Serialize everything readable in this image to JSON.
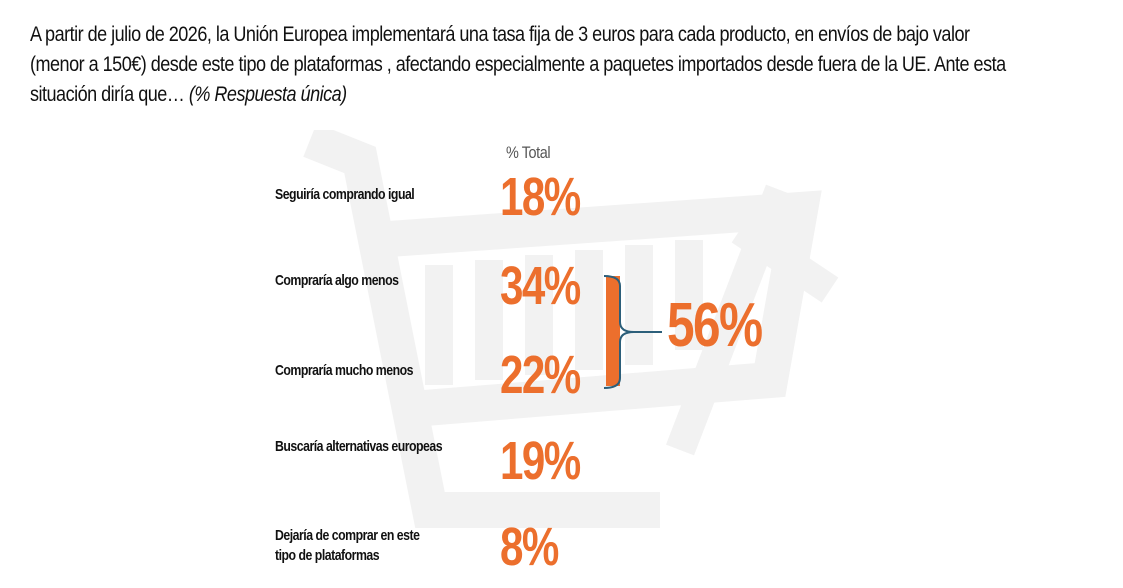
{
  "question": {
    "text": "A partir de julio de 2026, la Unión Europea implementará una tasa fija de 3 euros para cada producto, en envíos de bajo valor (menor a 150€) desde este tipo de plataformas , afectando especialmente a paquetes importados desde fuera de la UE. Ante esta situación diría que…",
    "note": "(% Respuesta única)"
  },
  "colors": {
    "accent": "#ec6f2d",
    "bracket_stroke": "#2c5f7a",
    "watermark": "#f2f2f2"
  },
  "icons": {
    "watermark": "shopping-cart-icon"
  },
  "chart_data": {
    "type": "table",
    "column_header": "% Total",
    "categories": [
      "Seguiría comprando igual",
      "Compraría algo menos",
      "Compraría mucho menos",
      "Buscaría alternativas europeas",
      "Dejaría de comprar en este tipo de plataformas"
    ],
    "values": [
      18,
      34,
      22,
      19,
      8
    ],
    "value_labels": [
      "18%",
      "34%",
      "22%",
      "19%",
      "8%"
    ],
    "group": {
      "members": [
        "Compraría algo menos",
        "Compraría mucho menos"
      ],
      "value": 56,
      "label": "56%"
    }
  }
}
